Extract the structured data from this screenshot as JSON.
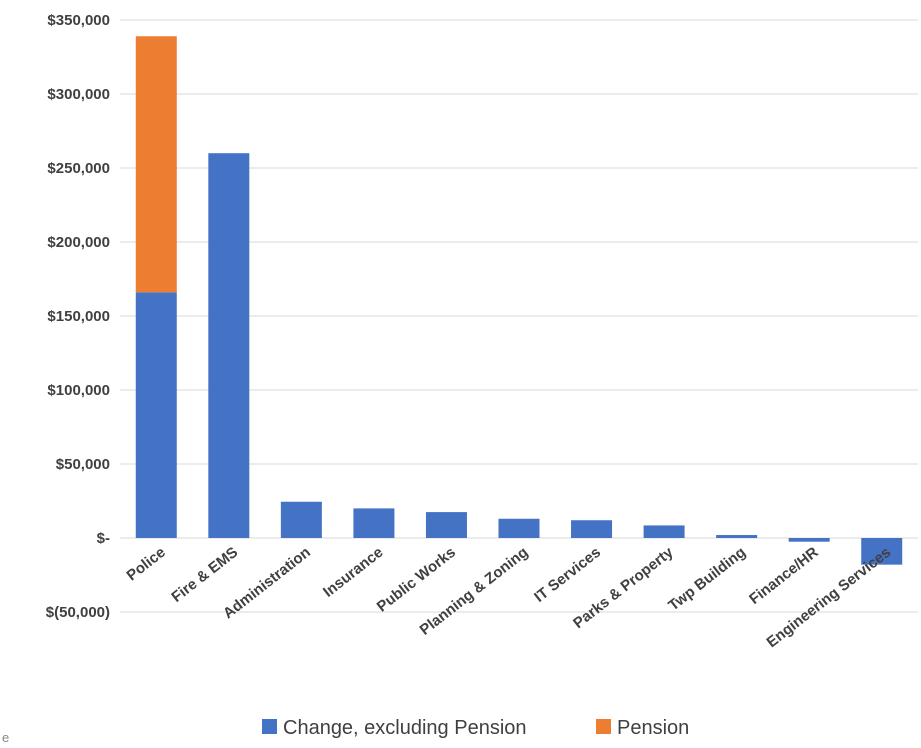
{
  "chart_data": {
    "type": "bar",
    "stacked": true,
    "categories": [
      "Police",
      "Fire & EMS",
      "Administration",
      "Insurance",
      "Public Works",
      "Planning & Zoning",
      "IT Services",
      "Parks & Property",
      "Twp Building",
      "Finance/HR",
      "Engineering Services"
    ],
    "series": [
      {
        "name": "Change, excluding Pension",
        "color": "#4472c4",
        "values": [
          166000,
          260000,
          24500,
          20000,
          17500,
          13000,
          12000,
          8500,
          2000,
          -2500,
          -18000
        ]
      },
      {
        "name": "Pension",
        "color": "#ed7d31",
        "values": [
          173000,
          0,
          0,
          0,
          0,
          0,
          0,
          0,
          0,
          0,
          0
        ]
      }
    ],
    "ylim": [
      -50000,
      350000
    ],
    "yticks": [
      350000,
      300000,
      250000,
      200000,
      150000,
      100000,
      50000,
      0,
      -50000
    ],
    "ytick_labels": [
      "$350,000",
      "$300,000",
      "$250,000",
      "$200,000",
      "$150,000",
      "$100,000",
      "$50,000",
      "$-",
      "$(50,000)"
    ],
    "grid": true,
    "legend_position": "bottom",
    "title": "",
    "xlabel": "",
    "ylabel": ""
  },
  "stray_text": "e"
}
